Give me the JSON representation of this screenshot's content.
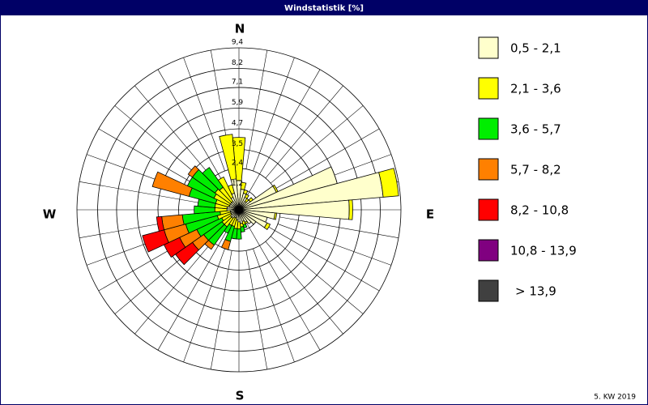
{
  "chart_data": {
    "type": "windrose",
    "title": "Windstatistik [%]",
    "footer": "5. KW 2019",
    "compass": [
      "N",
      "E",
      "S",
      "W"
    ],
    "directions": [
      0,
      10,
      20,
      30,
      40,
      50,
      60,
      70,
      80,
      90,
      100,
      110,
      120,
      130,
      140,
      150,
      160,
      170,
      180,
      190,
      200,
      210,
      220,
      230,
      240,
      250,
      260,
      270,
      280,
      290,
      300,
      310,
      320,
      330,
      340,
      350
    ],
    "rlim": [
      0,
      9.4
    ],
    "rticks": [
      {
        "value": 1.2,
        "label": "1,2"
      },
      {
        "value": 2.4,
        "label": "2,4"
      },
      {
        "value": 3.5,
        "label": "3,5"
      },
      {
        "value": 4.7,
        "label": "4,7"
      },
      {
        "value": 5.9,
        "label": "5,9"
      },
      {
        "value": 7.1,
        "label": "7,1"
      },
      {
        "value": 8.2,
        "label": "8,2"
      },
      {
        "value": 9.4,
        "label": "9,4"
      }
    ],
    "series": [
      {
        "name": "0,5 - 2,1",
        "color": "#ffffcc",
        "values": [
          1.7,
          1.2,
          1.0,
          0.8,
          0.6,
          0.8,
          2.4,
          5.9,
          8.4,
          6.4,
          2.1,
          1.7,
          1.8,
          1.2,
          1.0,
          0.8,
          0.7,
          0.8,
          0.7,
          0.6,
          0.5,
          0.5,
          0.6,
          0.6,
          0.5,
          0.5,
          0.5,
          0.7,
          0.7,
          0.6,
          0.6,
          0.6,
          0.6,
          0.8,
          1.0,
          1.8
        ]
      },
      {
        "name": "2,1 - 3,6",
        "color": "#ffff00",
        "values": [
          2.5,
          0.4,
          0.2,
          0.2,
          0.2,
          0.2,
          0.1,
          0,
          0.9,
          0.2,
          0.1,
          0,
          0.2,
          0,
          0,
          0.1,
          0.2,
          0.2,
          0.4,
          0.5,
          0.5,
          0.5,
          0.6,
          0.6,
          0.6,
          0.8,
          0.6,
          0.7,
          0.7,
          0.8,
          1.0,
          1.1,
          1.0,
          1.3,
          0.5,
          2.6
        ]
      },
      {
        "name": "3,6 - 5,7",
        "color": "#00ee00",
        "values": [
          0,
          0,
          0,
          0,
          0,
          0,
          0,
          0,
          0,
          0,
          0,
          0,
          0,
          0,
          0,
          0,
          0.2,
          0.3,
          0.6,
          0.6,
          0.9,
          0.5,
          1.3,
          1.3,
          1.6,
          1.9,
          2.2,
          1.2,
          1.0,
          1.6,
          1.7,
          1.6,
          1.4,
          0,
          0,
          0
        ]
      },
      {
        "name": "5,7 - 8,2",
        "color": "#ff8000",
        "values": [
          0,
          0,
          0,
          0,
          0,
          0,
          0,
          0,
          0,
          0,
          0,
          0,
          0,
          0,
          0,
          0,
          0,
          0,
          0,
          0,
          0.5,
          0,
          0.3,
          0.8,
          1.1,
          1.3,
          1.2,
          0,
          0,
          2.2,
          0,
          0.3,
          0,
          0,
          0,
          0
        ]
      },
      {
        "name": "8,2 - 10,8",
        "color": "#ff0000",
        "values": [
          0,
          0,
          0,
          0,
          0,
          0,
          0,
          0,
          0,
          0,
          0,
          0,
          0,
          0,
          0,
          0,
          0,
          0,
          0,
          0,
          0,
          0,
          0,
          1.2,
          1.0,
          1.3,
          0.3,
          0,
          0,
          0,
          0,
          0,
          0,
          0,
          0,
          0
        ]
      },
      {
        "name": "10,8 - 13,9",
        "color": "#800080",
        "values": [
          0,
          0,
          0,
          0,
          0,
          0,
          0,
          0,
          0,
          0,
          0,
          0,
          0,
          0,
          0,
          0,
          0,
          0,
          0,
          0,
          0,
          0,
          0,
          0,
          0,
          0,
          0,
          0,
          0,
          0,
          0,
          0,
          0,
          0,
          0,
          0
        ]
      },
      {
        "name": "> 13,9",
        "color": "#404040",
        "values": [
          0,
          0,
          0,
          0,
          0,
          0,
          0,
          0,
          0,
          0,
          0,
          0,
          0,
          0,
          0,
          0,
          0,
          0,
          0,
          0,
          0,
          0,
          0,
          0,
          0,
          0,
          0,
          0,
          0,
          0,
          0,
          0,
          0,
          0,
          0,
          0
        ]
      }
    ]
  }
}
